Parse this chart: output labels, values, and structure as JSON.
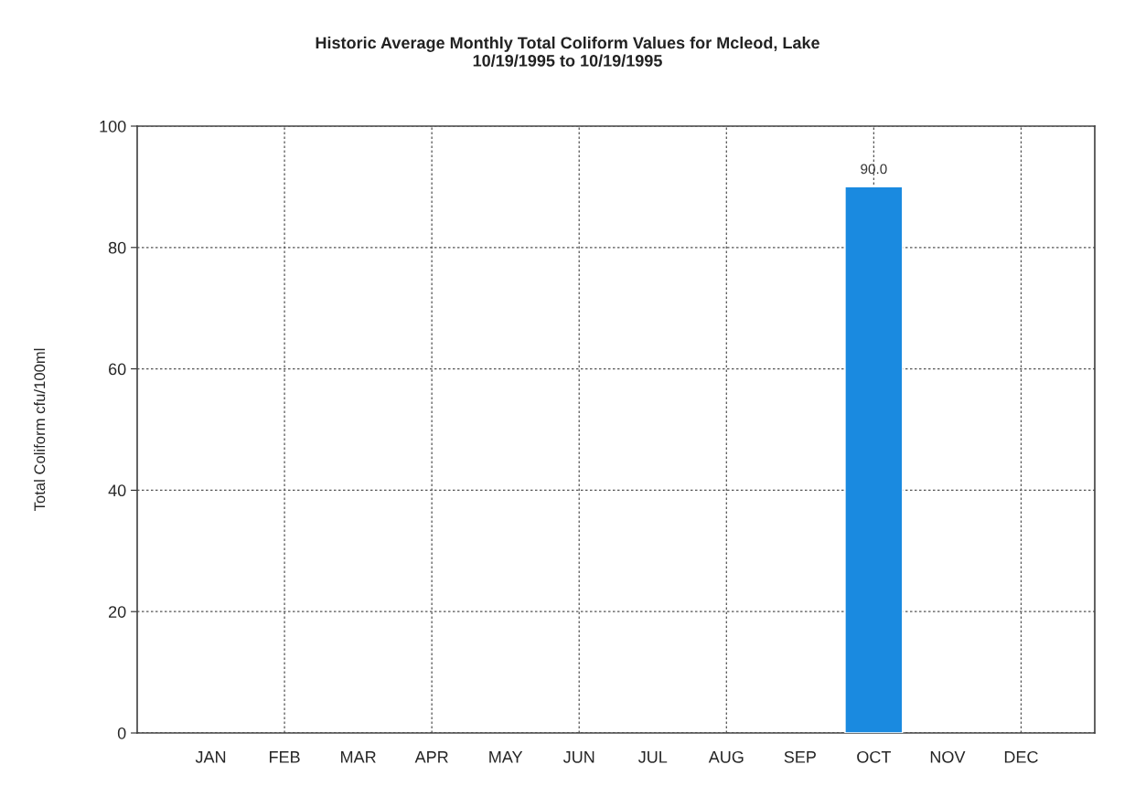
{
  "chart_data": {
    "type": "bar",
    "title": "Historic Average Monthly Total Coliform Values for Mcleod, Lake\n10/19/1995 to 10/19/1995",
    "ylabel": "Total Coliform cfu/100ml",
    "categories": [
      "JAN",
      "FEB",
      "MAR",
      "APR",
      "MAY",
      "JUN",
      "JUL",
      "AUG",
      "SEP",
      "OCT",
      "NOV",
      "DEC"
    ],
    "values": [
      null,
      null,
      null,
      null,
      null,
      null,
      null,
      null,
      null,
      90.0,
      null,
      null
    ],
    "value_labels": [
      null,
      null,
      null,
      null,
      null,
      null,
      null,
      null,
      null,
      "90.0",
      null,
      null
    ],
    "color": "#1a8ae0",
    "ylim": [
      0,
      100
    ],
    "yticks": [
      0,
      20,
      40,
      60,
      80,
      100
    ],
    "grid": true
  }
}
